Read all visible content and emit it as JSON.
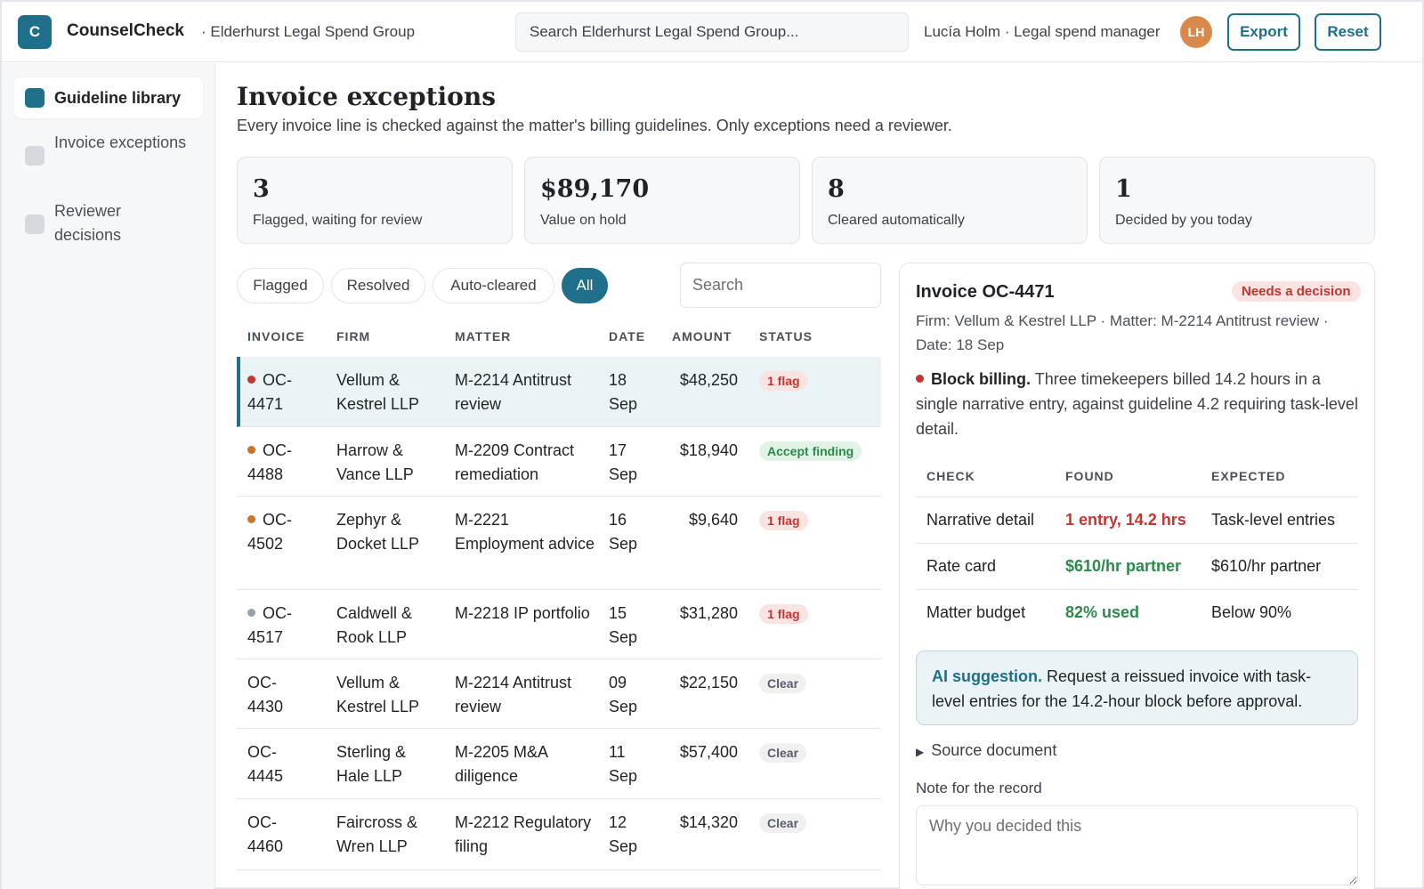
{
  "app": {
    "logo_letter": "C",
    "brand": "CounselCheck",
    "org": "· Elderhurst Legal Spend Group",
    "search_placeholder": "Search Elderhurst Legal Spend Group...",
    "user": "Lucía Holm · Legal spend manager",
    "avatar_initials": "LH",
    "export_label": "Export",
    "reset_label": "Reset",
    "accent_color": "#1f6f8b"
  },
  "sidebar": {
    "items": [
      {
        "label": "Guideline library",
        "active": true
      },
      {
        "label": "Invoice exceptions",
        "active": false
      },
      {
        "label": "Reviewer decisions",
        "active": false
      }
    ]
  },
  "page": {
    "title": "Invoice exceptions",
    "subtitle": "Every invoice line is checked against the matter's billing guidelines. Only exceptions need a reviewer."
  },
  "stats": [
    {
      "value": "3",
      "label": "Flagged, waiting for review"
    },
    {
      "value": "$89,170",
      "label": "Value on hold"
    },
    {
      "value": "8",
      "label": "Cleared automatically"
    },
    {
      "value": "1",
      "label": "Decided by you today"
    }
  ],
  "filters": {
    "chips": [
      "Flagged",
      "Resolved",
      "Auto-cleared",
      "All"
    ],
    "active": "All",
    "search_placeholder": "Search"
  },
  "table": {
    "headers": [
      "INVOICE",
      "FIRM",
      "MATTER",
      "DATE",
      "AMOUNT",
      "STATUS"
    ],
    "rows": [
      {
        "invoice": "OC-4471",
        "firm": "Vellum & Kestrel LLP",
        "matter": "M-2214 Antitrust review",
        "date": "18 Sep",
        "amount": "$48,250",
        "status": "1 flag",
        "status_kind": "flag",
        "dot": "#c23632",
        "selected": true
      },
      {
        "invoice": "OC-4488",
        "firm": "Harrow & Vance LLP",
        "matter": "M-2209 Contract remediation",
        "date": "17 Sep",
        "amount": "$18,940",
        "status": "Accept finding",
        "status_kind": "accept",
        "dot": "#c8742a",
        "selected": false
      },
      {
        "invoice": "OC-4502",
        "firm": "Zephyr & Docket LLP",
        "matter": "M-2221 Employment advice",
        "date": "16 Sep",
        "amount": "$9,640",
        "status": "1 flag",
        "status_kind": "flag",
        "dot": "#c8742a",
        "selected": false
      },
      {
        "invoice": "OC-4517",
        "firm": "Caldwell & Rook LLP",
        "matter": "M-2218 IP portfolio",
        "date": "15 Sep",
        "amount": "$31,280",
        "status": "1 flag",
        "status_kind": "flag",
        "dot": "#9aa0a8",
        "selected": false
      },
      {
        "invoice": "OC-4430",
        "firm": "Vellum & Kestrel LLP",
        "matter": "M-2214 Antitrust review",
        "date": "09 Sep",
        "amount": "$22,150",
        "status": "Clear",
        "status_kind": "clear",
        "dot": "",
        "selected": false
      },
      {
        "invoice": "OC-4445",
        "firm": "Sterling & Hale LLP",
        "matter": "M-2205 M&A diligence",
        "date": "11 Sep",
        "amount": "$57,400",
        "status": "Clear",
        "status_kind": "clear",
        "dot": "",
        "selected": false
      },
      {
        "invoice": "OC-4460",
        "firm": "Faircross & Wren LLP",
        "matter": "M-2212 Regulatory filing",
        "date": "12 Sep",
        "amount": "$14,320",
        "status": "Clear",
        "status_kind": "clear",
        "dot": "",
        "selected": false
      }
    ]
  },
  "detail": {
    "title": "Invoice OC-4471",
    "badge": "Needs a decision",
    "meta": "Firm: Vellum & Kestrel LLP · Matter: M-2214 Antitrust review · Date: 18 Sep",
    "finding_title": "Block billing.",
    "finding_text": "Three timekeepers billed 14.2 hours in a single narrative entry, against guideline 4.2 requiring task-level detail.",
    "checks_headers": [
      "CHECK",
      "FOUND",
      "EXPECTED"
    ],
    "checks": [
      {
        "check": "Narrative detail",
        "found": "1 entry, 14.2 hrs",
        "expected": "Task-level entries",
        "ok": false
      },
      {
        "check": "Rate card",
        "found": "$610/hr partner",
        "expected": "$610/hr partner",
        "ok": true
      },
      {
        "check": "Matter budget",
        "found": "82% used",
        "expected": "Below 90%",
        "ok": true
      }
    ],
    "ai_title": "AI suggestion.",
    "ai_text": "Request a reissued invoice with task-level entries for the 14.2-hour block before approval.",
    "source_label": "Source document",
    "note_label": "Note for the record",
    "note_placeholder": "Why you decided this"
  }
}
